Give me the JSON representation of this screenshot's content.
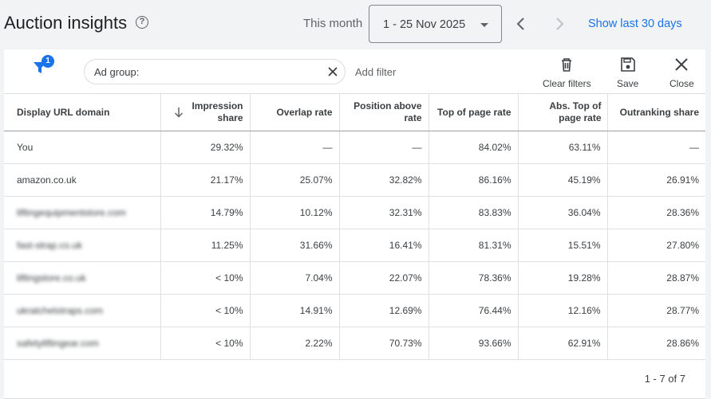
{
  "header": {
    "title": "Auction insights",
    "help_icon": "?",
    "period_label": "This month",
    "date_range": "1 - 25 Nov 2025",
    "show_last": "Show last 30 days"
  },
  "toolbar": {
    "filter_badge": "1",
    "chip_label": "Ad group:",
    "add_filter": "Add filter",
    "clear_filters": "Clear filters",
    "save": "Save",
    "close": "Close"
  },
  "table": {
    "columns": [
      "Display URL domain",
      "Impression share",
      "Overlap rate",
      "Position above rate",
      "Top of page rate",
      "Abs. Top of page rate",
      "Outranking share"
    ],
    "rows": [
      [
        "You",
        "29.32%",
        "—",
        "—",
        "84.02%",
        "63.11%",
        "—"
      ],
      [
        "amazon.co.uk",
        "21.17%",
        "25.07%",
        "32.82%",
        "86.16%",
        "45.19%",
        "26.91%"
      ],
      [
        "liftingequipmentstore.com",
        "14.79%",
        "10.12%",
        "32.31%",
        "83.83%",
        "36.04%",
        "28.36%"
      ],
      [
        "fast-strap.co.uk",
        "11.25%",
        "31.66%",
        "16.41%",
        "81.31%",
        "15.51%",
        "27.80%"
      ],
      [
        "liftingstore.co.uk",
        "< 10%",
        "7.04%",
        "22.07%",
        "78.36%",
        "19.28%",
        "28.87%"
      ],
      [
        "ukratchetstraps.com",
        "< 10%",
        "14.91%",
        "12.69%",
        "76.44%",
        "12.16%",
        "28.77%"
      ],
      [
        "safetyliftingear.com",
        "< 10%",
        "2.22%",
        "70.73%",
        "93.66%",
        "62.91%",
        "28.86%"
      ]
    ]
  },
  "pager": "1 - 7 of 7",
  "colors": {
    "accent": "#1a73e8",
    "text": "#202124",
    "muted": "#5f6368",
    "background": "#f1f3f4"
  }
}
